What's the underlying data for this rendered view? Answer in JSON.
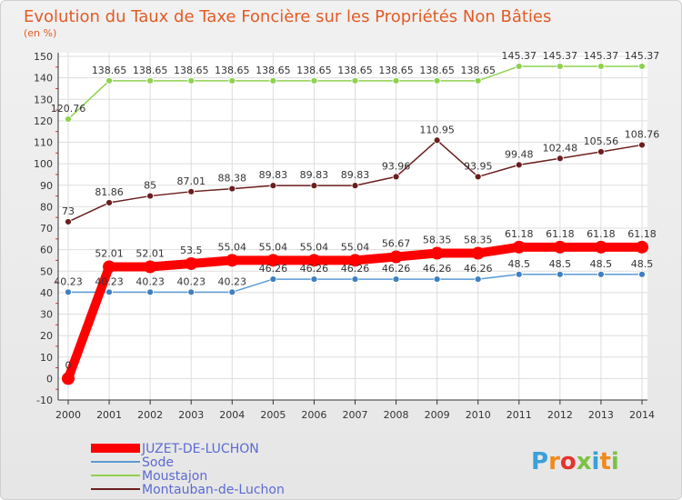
{
  "chart_data": {
    "type": "line",
    "title": "Evolution du Taux de Taxe Foncière sur les Propriétés Non Bâties",
    "subtitle": "(en %)",
    "xlabel": "",
    "ylabel": "",
    "ylim": [
      -10,
      150
    ],
    "yticks": [
      "150",
      "140",
      "130",
      "120",
      "110",
      "100",
      "90",
      "80",
      "70",
      "60",
      "50",
      "40",
      "30",
      "20",
      "10",
      "0",
      "-10"
    ],
    "categories": [
      "2000",
      "2001",
      "2002",
      "2003",
      "2004",
      "2005",
      "2006",
      "2007",
      "2008",
      "2009",
      "2010",
      "2011",
      "2012",
      "2013",
      "2014"
    ],
    "grid": true,
    "legend_position": "bottom-left",
    "series": [
      {
        "name": "Moustajon",
        "color": "#8fd14f",
        "dot_color": "#8fd14f",
        "width": "thin",
        "values": [
          120.76,
          138.65,
          138.65,
          138.65,
          138.65,
          138.65,
          138.65,
          138.65,
          138.65,
          138.65,
          138.65,
          145.37,
          145.37,
          145.37,
          145.37
        ],
        "labels": [
          "120.76",
          "138.65",
          "138.65",
          "138.65",
          "138.65",
          "138.65",
          "138.65",
          "138.65",
          "138.65",
          "138.65",
          "138.65",
          "145.37",
          "145.37",
          "145.37",
          "145.37"
        ]
      },
      {
        "name": "Montauban-de-Luchon",
        "color": "#6b1e1e",
        "dot_color": "#6b1e1e",
        "width": "thin",
        "values": [
          73,
          81.86,
          85,
          87.01,
          88.38,
          89.83,
          89.83,
          89.83,
          93.96,
          110.95,
          93.95,
          99.48,
          102.48,
          105.56,
          108.76
        ],
        "labels": [
          "73",
          "81.86",
          "85",
          "87.01",
          "88.38",
          "89.83",
          "89.83",
          "89.83",
          "93.96",
          "110.95",
          "93.95",
          "99.48",
          "102.48",
          "105.56",
          "108.76"
        ]
      },
      {
        "name": "Sode",
        "color": "#5b9bd5",
        "dot_color": "#3f7fc1",
        "width": "thin",
        "values": [
          40.23,
          40.23,
          40.23,
          40.23,
          40.23,
          46.26,
          46.26,
          46.26,
          46.26,
          46.26,
          46.26,
          48.5,
          48.5,
          48.5,
          48.5
        ],
        "labels": [
          "40.23",
          "40.23",
          "40.23",
          "40.23",
          "40.23",
          "46.26",
          "46.26",
          "46.26",
          "46.26",
          "46.26",
          "46.26",
          "48.5",
          "48.5",
          "48.5",
          "48.5"
        ]
      },
      {
        "name": "JUZET-DE-LUCHON",
        "color": "#ff0000",
        "dot_color": "#ff0000",
        "width": "thick",
        "values": [
          0,
          52.01,
          52.01,
          53.5,
          55.04,
          55.04,
          55.04,
          55.04,
          56.67,
          58.35,
          58.35,
          61.18,
          61.18,
          61.18,
          61.18
        ],
        "labels": [
          "0",
          "52.01",
          "52.01",
          "53.5",
          "55.04",
          "55.04",
          "55.04",
          "55.04",
          "56.67",
          "58.35",
          "58.35",
          "61.18",
          "61.18",
          "61.18",
          "61.18"
        ]
      }
    ],
    "legend": [
      {
        "name": "JUZET-DE-LUCHON",
        "color": "#ff0000",
        "width": "thick"
      },
      {
        "name": "Sode",
        "color": "#5b9bd5",
        "width": "thin"
      },
      {
        "name": "Moustajon",
        "color": "#8fd14f",
        "width": "thin"
      },
      {
        "name": "Montauban-de-Luchon",
        "color": "#6b1e1e",
        "width": "thin"
      }
    ]
  },
  "branding": {
    "logo_text": "Proxiti"
  }
}
